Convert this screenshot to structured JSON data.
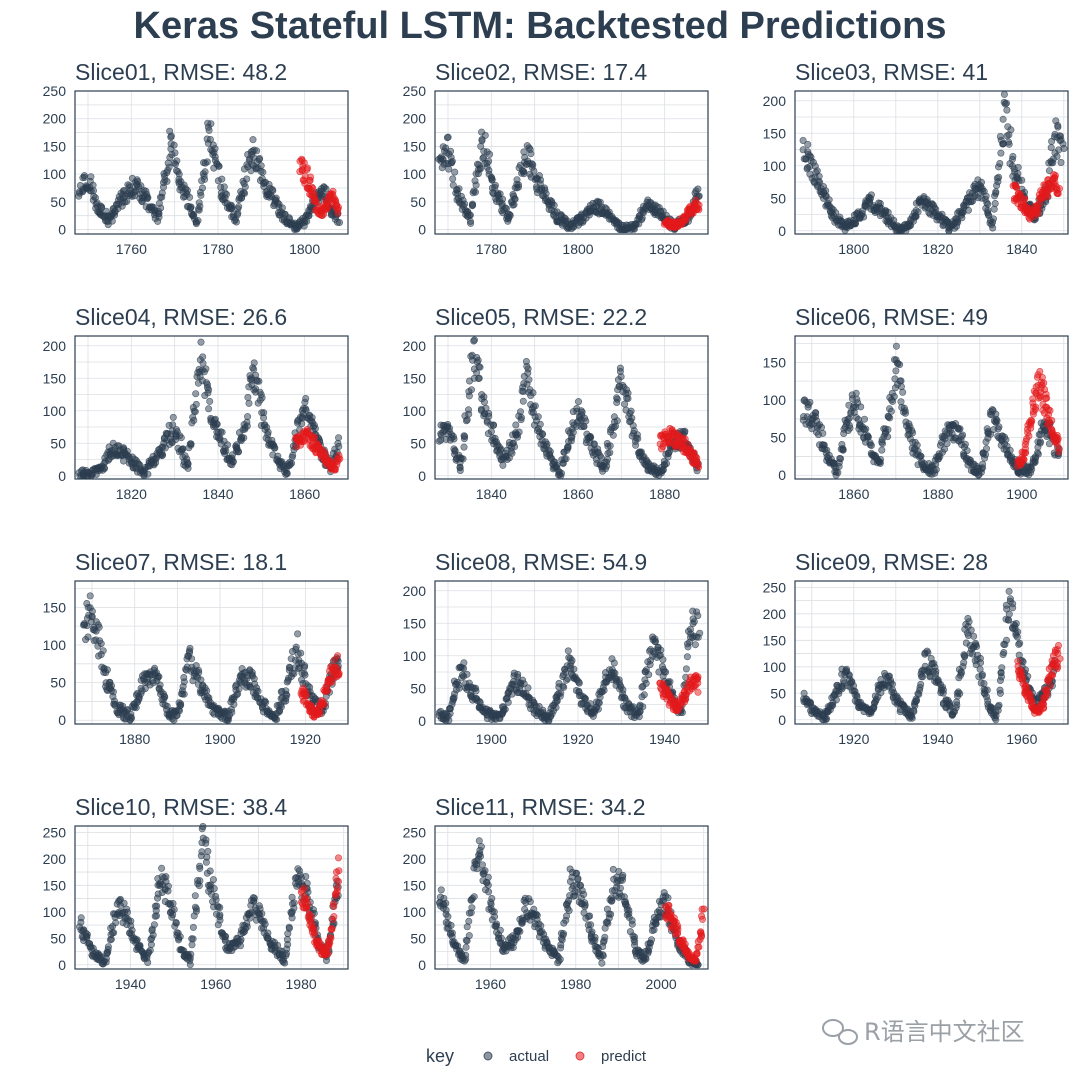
{
  "title": "Keras Stateful LSTM: Backtested Predictions",
  "legend": {
    "title": "key",
    "items": [
      "actual",
      "predict"
    ]
  },
  "watermark": "R语言中文社区",
  "colors": {
    "actual": "#2c3e50",
    "predict": "#e31a1c",
    "text": "#2c3e50",
    "grid": "#dcdfe3",
    "frame": "#2c3e50"
  },
  "chart_data": [
    {
      "type": "scatter",
      "title": "Slice01, RMSE: 48.2",
      "xlim": [
        1747,
        1810
      ],
      "xticks": [
        1760,
        1780,
        1800
      ],
      "ylim": [
        -8,
        250
      ],
      "yticks": [
        0,
        50,
        100,
        150,
        200,
        250
      ],
      "series": [
        {
          "name": "actual",
          "x": [
            1748,
            1750,
            1752,
            1755,
            1758,
            1761,
            1764,
            1766,
            1769,
            1772,
            1775,
            1778,
            1781,
            1784,
            1788,
            1791,
            1795,
            1798,
            1800,
            1802,
            1804,
            1806,
            1808
          ],
          "y": [
            75,
            95,
            45,
            15,
            60,
            80,
            45,
            20,
            150,
            70,
            15,
            175,
            70,
            20,
            145,
            80,
            25,
            5,
            15,
            45,
            75,
            40,
            15
          ]
        },
        {
          "name": "predict",
          "x": [
            1799,
            1800,
            1801,
            1802,
            1803,
            1804,
            1805,
            1806,
            1807,
            1808
          ],
          "y": [
            115,
            100,
            85,
            65,
            35,
            30,
            45,
            60,
            55,
            25
          ]
        }
      ]
    },
    {
      "type": "scatter",
      "title": "Slice02, RMSE: 17.4",
      "xlim": [
        1767,
        1830
      ],
      "xticks": [
        1780,
        1800,
        1820
      ],
      "ylim": [
        -8,
        250
      ],
      "yticks": [
        0,
        50,
        100,
        150,
        200,
        250
      ],
      "series": [
        {
          "name": "actual",
          "x": [
            1768,
            1770,
            1772,
            1775,
            1778,
            1781,
            1784,
            1788,
            1791,
            1795,
            1798,
            1801,
            1804,
            1807,
            1810,
            1813,
            1816,
            1819,
            1822,
            1825,
            1828
          ],
          "y": [
            110,
            145,
            70,
            15,
            160,
            70,
            20,
            140,
            80,
            25,
            5,
            20,
            45,
            30,
            2,
            5,
            45,
            30,
            5,
            20,
            65
          ]
        },
        {
          "name": "predict",
          "x": [
            1820,
            1821,
            1822,
            1823,
            1824,
            1825,
            1826,
            1827,
            1828
          ],
          "y": [
            15,
            10,
            8,
            10,
            15,
            25,
            35,
            45,
            40
          ]
        }
      ]
    },
    {
      "type": "scatter",
      "title": "Slice03, RMSE: 41",
      "xlim": [
        1786,
        1851
      ],
      "xticks": [
        1800,
        1820,
        1840
      ],
      "ylim": [
        -5,
        215
      ],
      "yticks": [
        0,
        50,
        100,
        150,
        200
      ],
      "series": [
        {
          "name": "actual",
          "x": [
            1788,
            1791,
            1795,
            1798,
            1801,
            1804,
            1807,
            1810,
            1813,
            1816,
            1819,
            1823,
            1826,
            1830,
            1833,
            1836,
            1838,
            1840,
            1843,
            1846,
            1848,
            1850
          ],
          "y": [
            130,
            80,
            25,
            5,
            20,
            45,
            30,
            2,
            5,
            45,
            30,
            3,
            30,
            70,
            10,
            190,
            100,
            60,
            20,
            60,
            150,
            120
          ]
        },
        {
          "name": "predict",
          "x": [
            1838,
            1839,
            1840,
            1841,
            1842,
            1843,
            1844,
            1845,
            1846,
            1847,
            1848,
            1849
          ],
          "y": [
            60,
            55,
            45,
            35,
            25,
            30,
            40,
            55,
            65,
            75,
            70,
            60
          ]
        }
      ]
    },
    {
      "type": "scatter",
      "title": "Slice04, RMSE: 26.6",
      "xlim": [
        1807,
        1870
      ],
      "xticks": [
        1820,
        1840,
        1860
      ],
      "ylim": [
        -5,
        215
      ],
      "yticks": [
        0,
        50,
        100,
        150,
        200
      ],
      "series": [
        {
          "name": "actual",
          "x": [
            1808,
            1810,
            1813,
            1816,
            1819,
            1823,
            1826,
            1830,
            1833,
            1836,
            1838,
            1840,
            1843,
            1846,
            1848,
            1851,
            1854,
            1856,
            1858,
            1860,
            1863,
            1866,
            1868
          ],
          "y": [
            5,
            2,
            10,
            45,
            30,
            3,
            30,
            75,
            10,
            190,
            110,
            70,
            20,
            70,
            160,
            70,
            20,
            5,
            60,
            100,
            50,
            10,
            55
          ]
        },
        {
          "name": "predict",
          "x": [
            1858,
            1859,
            1860,
            1861,
            1862,
            1863,
            1864,
            1865,
            1866,
            1867,
            1868
          ],
          "y": [
            55,
            60,
            60,
            55,
            50,
            45,
            35,
            25,
            15,
            10,
            30
          ]
        }
      ]
    },
    {
      "type": "scatter",
      "title": "Slice05, RMSE: 22.2",
      "xlim": [
        1827,
        1890
      ],
      "xticks": [
        1840,
        1860,
        1880
      ],
      "ylim": [
        -5,
        215
      ],
      "yticks": [
        0,
        50,
        100,
        150,
        200
      ],
      "series": [
        {
          "name": "actual",
          "x": [
            1828,
            1830,
            1833,
            1836,
            1838,
            1840,
            1843,
            1846,
            1848,
            1851,
            1854,
            1856,
            1858,
            1860,
            1863,
            1866,
            1868,
            1870,
            1873,
            1876,
            1879,
            1882,
            1885,
            1888
          ],
          "y": [
            60,
            75,
            10,
            190,
            110,
            70,
            20,
            70,
            160,
            70,
            20,
            5,
            60,
            100,
            50,
            10,
            70,
            150,
            60,
            15,
            5,
            55,
            55,
            10
          ]
        },
        {
          "name": "predict",
          "x": [
            1879,
            1880,
            1881,
            1882,
            1883,
            1884,
            1885,
            1886,
            1887,
            1888
          ],
          "y": [
            50,
            55,
            60,
            60,
            55,
            50,
            45,
            35,
            25,
            15
          ]
        }
      ]
    },
    {
      "type": "scatter",
      "title": "Slice06, RMSE: 49",
      "xlim": [
        1846,
        1911
      ],
      "xticks": [
        1860,
        1880,
        1900
      ],
      "ylim": [
        -5,
        185
      ],
      "yticks": [
        0,
        50,
        100,
        150
      ],
      "series": [
        {
          "name": "actual",
          "x": [
            1848,
            1851,
            1854,
            1856,
            1858,
            1860,
            1863,
            1866,
            1868,
            1870,
            1873,
            1876,
            1879,
            1882,
            1885,
            1888,
            1890,
            1893,
            1896,
            1899,
            1902,
            1905,
            1907,
            1909
          ],
          "y": [
            90,
            70,
            20,
            5,
            60,
            100,
            50,
            10,
            70,
            150,
            60,
            15,
            5,
            55,
            55,
            10,
            5,
            80,
            40,
            10,
            5,
            60,
            55,
            20
          ]
        },
        {
          "name": "predict",
          "x": [
            1899,
            1900,
            1901,
            1902,
            1903,
            1904,
            1905,
            1906,
            1907,
            1908,
            1909
          ],
          "y": [
            15,
            20,
            40,
            70,
            100,
            120,
            110,
            90,
            70,
            50,
            35
          ]
        }
      ]
    },
    {
      "type": "scatter",
      "title": "Slice07, RMSE: 18.1",
      "xlim": [
        1866,
        1930
      ],
      "xticks": [
        1880,
        1900,
        1920
      ],
      "ylim": [
        -5,
        185
      ],
      "yticks": [
        0,
        50,
        100,
        150
      ],
      "series": [
        {
          "name": "actual",
          "x": [
            1868,
            1870,
            1873,
            1876,
            1879,
            1882,
            1885,
            1888,
            1890,
            1893,
            1896,
            1899,
            1902,
            1905,
            1907,
            1910,
            1913,
            1916,
            1918,
            1921,
            1924,
            1926,
            1928
          ],
          "y": [
            110,
            150,
            60,
            15,
            5,
            55,
            55,
            10,
            5,
            80,
            40,
            10,
            5,
            60,
            55,
            20,
            3,
            50,
            95,
            30,
            10,
            60,
            80
          ]
        },
        {
          "name": "predict",
          "x": [
            1919,
            1920,
            1921,
            1922,
            1923,
            1924,
            1925,
            1926,
            1927,
            1928
          ],
          "y": [
            45,
            30,
            15,
            8,
            10,
            25,
            45,
            60,
            70,
            75
          ]
        }
      ]
    },
    {
      "type": "scatter",
      "title": "Slice08, RMSE: 54.9",
      "xlim": [
        1887,
        1950
      ],
      "xticks": [
        1900,
        1920,
        1940
      ],
      "ylim": [
        -5,
        215
      ],
      "yticks": [
        0,
        50,
        100,
        150,
        200
      ],
      "series": [
        {
          "name": "actual",
          "x": [
            1888,
            1890,
            1893,
            1896,
            1899,
            1902,
            1905,
            1907,
            1910,
            1913,
            1916,
            1918,
            1921,
            1924,
            1926,
            1928,
            1931,
            1934,
            1937,
            1939,
            1942,
            1944,
            1946,
            1948
          ],
          "y": [
            10,
            5,
            80,
            40,
            10,
            5,
            60,
            55,
            20,
            3,
            50,
            95,
            30,
            10,
            60,
            80,
            25,
            5,
            115,
            90,
            30,
            10,
            150,
            140
          ]
        },
        {
          "name": "predict",
          "x": [
            1939,
            1940,
            1941,
            1942,
            1943,
            1944,
            1945,
            1946,
            1947,
            1948
          ],
          "y": [
            50,
            45,
            35,
            25,
            20,
            30,
            45,
            55,
            60,
            55
          ]
        }
      ]
    },
    {
      "type": "scatter",
      "title": "Slice09, RMSE: 28",
      "xlim": [
        1906,
        1971
      ],
      "xticks": [
        1920,
        1940,
        1960
      ],
      "ylim": [
        -8,
        262
      ],
      "yticks": [
        0,
        50,
        100,
        150,
        200,
        250
      ],
      "series": [
        {
          "name": "actual",
          "x": [
            1908,
            1910,
            1913,
            1916,
            1918,
            1921,
            1924,
            1926,
            1928,
            1931,
            1934,
            1937,
            1939,
            1942,
            1944,
            1947,
            1949,
            1952,
            1954,
            1957,
            1958,
            1960,
            1963,
            1966,
            1968
          ],
          "y": [
            40,
            20,
            3,
            50,
            95,
            30,
            10,
            60,
            80,
            25,
            5,
            115,
            90,
            30,
            10,
            170,
            130,
            30,
            5,
            230,
            190,
            110,
            30,
            50,
            100
          ]
        },
        {
          "name": "predict",
          "x": [
            1959,
            1960,
            1961,
            1962,
            1963,
            1964,
            1965,
            1966,
            1967,
            1968,
            1969
          ],
          "y": [
            105,
            80,
            55,
            35,
            20,
            15,
            30,
            60,
            95,
            115,
            120
          ]
        }
      ]
    },
    {
      "type": "scatter",
      "title": "Slice10, RMSE: 38.4",
      "xlim": [
        1927,
        1991
      ],
      "xticks": [
        1940,
        1960,
        1980
      ],
      "ylim": [
        -8,
        262
      ],
      "yticks": [
        0,
        50,
        100,
        150,
        200,
        250
      ],
      "series": [
        {
          "name": "actual",
          "x": [
            1928,
            1931,
            1934,
            1937,
            1939,
            1942,
            1944,
            1947,
            1949,
            1952,
            1954,
            1957,
            1958,
            1960,
            1963,
            1966,
            1968,
            1970,
            1973,
            1976,
            1979,
            1981,
            1984,
            1986,
            1989
          ],
          "y": [
            80,
            25,
            5,
            115,
            90,
            30,
            10,
            170,
            130,
            30,
            5,
            230,
            190,
            110,
            30,
            50,
            110,
            100,
            40,
            10,
            160,
            140,
            50,
            10,
            170
          ]
        },
        {
          "name": "predict",
          "x": [
            1980,
            1981,
            1982,
            1983,
            1984,
            1985,
            1986,
            1987,
            1988,
            1989
          ],
          "y": [
            140,
            115,
            85,
            60,
            40,
            25,
            20,
            60,
            130,
            185
          ]
        }
      ]
    },
    {
      "type": "scatter",
      "title": "Slice11, RMSE: 34.2",
      "xlim": [
        1947,
        2011
      ],
      "xticks": [
        1960,
        1980,
        2000
      ],
      "ylim": [
        -8,
        262
      ],
      "yticks": [
        0,
        50,
        100,
        150,
        200,
        250
      ],
      "series": [
        {
          "name": "actual",
          "x": [
            1948,
            1950,
            1952,
            1954,
            1957,
            1958,
            1960,
            1963,
            1966,
            1968,
            1970,
            1973,
            1976,
            1979,
            1981,
            1984,
            1986,
            1989,
            1991,
            1994,
            1996,
            1999,
            2001,
            2004,
            2007,
            2009
          ],
          "y": [
            140,
            80,
            30,
            5,
            230,
            190,
            110,
            30,
            50,
            110,
            100,
            40,
            10,
            160,
            140,
            50,
            10,
            160,
            150,
            30,
            8,
            90,
            120,
            40,
            5,
            3
          ]
        },
        {
          "name": "predict",
          "x": [
            2001,
            2002,
            2003,
            2004,
            2005,
            2006,
            2007,
            2008,
            2009,
            2010
          ],
          "y": [
            105,
            95,
            75,
            55,
            40,
            25,
            15,
            10,
            50,
            100
          ]
        }
      ]
    }
  ]
}
